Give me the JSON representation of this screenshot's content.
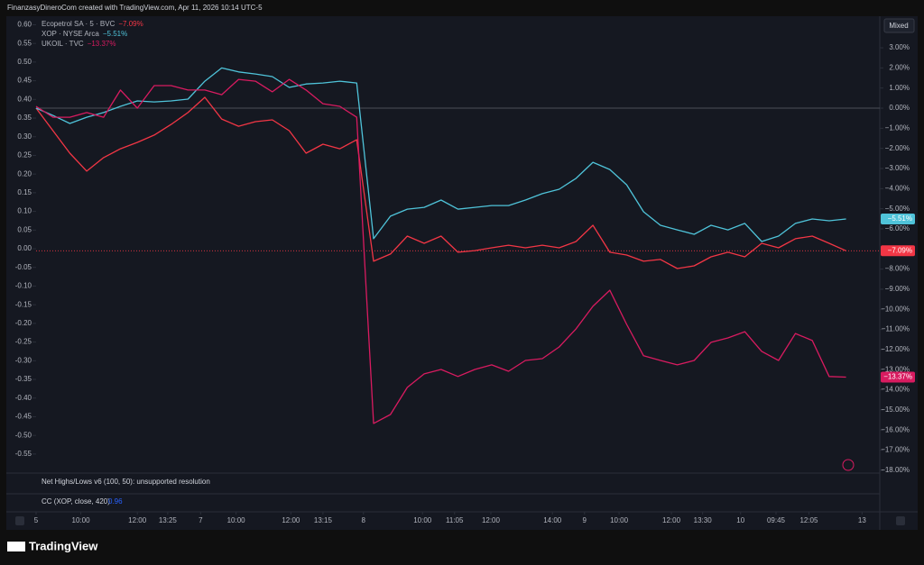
{
  "header": {
    "title": "FinanzasyDineroCom created with TradingView.com, Apr 11, 2026 10:14 UTC-5"
  },
  "chart_data": {
    "type": "line",
    "scale_button": "Mixed",
    "grid": false,
    "x": [
      0,
      2,
      4,
      6,
      8,
      10,
      12,
      14,
      16,
      18,
      20,
      22,
      24,
      26,
      28,
      30,
      32,
      34,
      36,
      38,
      40,
      42,
      44,
      46,
      48,
      50,
      52,
      54,
      56,
      58,
      60,
      62,
      64,
      66,
      68,
      70,
      72,
      74,
      76,
      78,
      80,
      82,
      84,
      86,
      88,
      90,
      92,
      94,
      96
    ],
    "xlim": [
      0,
      100
    ],
    "xticks": [
      {
        "value": 0,
        "label": "5"
      },
      {
        "value": 5.3,
        "label": "10:00"
      },
      {
        "value": 12,
        "label": "12:00"
      },
      {
        "value": 15.6,
        "label": "13:25"
      },
      {
        "value": 19.5,
        "label": "7"
      },
      {
        "value": 23.7,
        "label": "10:00"
      },
      {
        "value": 30.2,
        "label": "12:00"
      },
      {
        "value": 34,
        "label": "13:15"
      },
      {
        "value": 38.8,
        "label": "8"
      },
      {
        "value": 45.8,
        "label": "10:00"
      },
      {
        "value": 49.6,
        "label": "11:05"
      },
      {
        "value": 53.9,
        "label": "12:00"
      },
      {
        "value": 61.2,
        "label": "14:00"
      },
      {
        "value": 65,
        "label": "9"
      },
      {
        "value": 69.1,
        "label": "10:00"
      },
      {
        "value": 75.3,
        "label": "12:00"
      },
      {
        "value": 79,
        "label": "13:30"
      },
      {
        "value": 83.5,
        "label": "10"
      },
      {
        "value": 87.7,
        "label": "09:45"
      },
      {
        "value": 91.6,
        "label": "12:05"
      },
      {
        "value": 97.9,
        "label": "13"
      }
    ],
    "ylim": [
      -0.601,
      0.618
    ],
    "yticks": [
      {
        "value": 0.6,
        "label": "0.60"
      },
      0.55,
      {
        "value": 0.5,
        "label": "0.50"
      },
      0.45,
      {
        "value": 0.4,
        "label": "0.40"
      },
      0.35,
      {
        "value": 0.3,
        "label": "0.30"
      },
      0.25,
      {
        "value": 0.2,
        "label": "0.20"
      },
      0.15,
      {
        "value": 0.1,
        "label": "0.10"
      },
      0.05,
      {
        "value": 0,
        "label": "0.00"
      },
      -0.05,
      {
        "value": -0.1,
        "label": "-0.10"
      },
      -0.15,
      {
        "value": -0.2,
        "label": "-0.20"
      },
      -0.25,
      {
        "value": -0.3,
        "label": "-0.30"
      },
      -0.35,
      {
        "value": -0.4,
        "label": "-0.40"
      },
      -0.45,
      {
        "value": -0.5,
        "label": "-0.50"
      },
      -0.55
    ],
    "y2lim": [
      -18.14,
      4.48
    ],
    "y2ticks": [
      {
        "value": 3,
        "label": "3.00%"
      },
      {
        "value": 2,
        "label": "2.00%"
      },
      {
        "value": 1,
        "label": "1.00%"
      },
      {
        "value": 0,
        "label": "0.00%"
      },
      {
        "value": -1,
        "label": "−1.00%"
      },
      {
        "value": -2,
        "label": "−2.00%"
      },
      {
        "value": -3,
        "label": "−3.00%"
      },
      {
        "value": -4,
        "label": "−4.00%"
      },
      {
        "value": -5,
        "label": "−5.00%"
      },
      {
        "value": -6,
        "label": "−6.00%"
      },
      {
        "value": -8,
        "label": "−8.00%"
      },
      {
        "value": -9,
        "label": "−9.00%"
      },
      {
        "value": -10,
        "label": "−10.00%"
      },
      {
        "value": -11,
        "label": "−11.00%"
      },
      {
        "value": -12,
        "label": "−12.00%"
      },
      {
        "value": -13,
        "label": "−13.00%"
      },
      {
        "value": -14,
        "label": "−14.00%"
      },
      {
        "value": -15,
        "label": "−15.00%"
      },
      {
        "value": -16,
        "label": "−16.00%"
      },
      {
        "value": -17,
        "label": "−17.00%"
      },
      {
        "value": -18,
        "label": "−18.00%"
      }
    ],
    "series": [
      {
        "name": "Ecopetrol SA · 5 · BVC",
        "color": "#f23645",
        "axis": "y2",
        "last_label": "−7.09%",
        "values": [
          0,
          -1.12,
          -2.24,
          -3.13,
          -2.46,
          -2.02,
          -1.7,
          -1.34,
          -0.81,
          -0.22,
          0.54,
          -0.54,
          -0.9,
          -0.67,
          -0.58,
          -1.12,
          -2.24,
          -1.79,
          -2.02,
          -1.57,
          -7.61,
          -7.25,
          -6.36,
          -6.72,
          -6.36,
          -7.16,
          -7.08,
          -6.94,
          -6.81,
          -6.94,
          -6.81,
          -6.94,
          -6.63,
          -5.82,
          -7.16,
          -7.3,
          -7.61,
          -7.52,
          -7.97,
          -7.84,
          -7.39,
          -7.16,
          -7.39,
          -6.72,
          -6.94,
          -6.49,
          -6.36,
          -6.72,
          -7.09
        ]
      },
      {
        "name": "XOP · NYSE Arca",
        "color": "#4fc3d9",
        "axis": "y2",
        "last_label": "−5.51%",
        "values": [
          0,
          -0.36,
          -0.76,
          -0.45,
          -0.22,
          0.09,
          0.36,
          0.31,
          0.36,
          0.45,
          1.34,
          2.0,
          1.8,
          1.7,
          1.57,
          1.03,
          1.2,
          1.25,
          1.34,
          1.25,
          -6.49,
          -5.37,
          -5.02,
          -4.93,
          -4.57,
          -5.02,
          -4.93,
          -4.84,
          -4.84,
          -4.57,
          -4.25,
          -4.03,
          -3.49,
          -2.69,
          -3.05,
          -3.81,
          -5.15,
          -5.82,
          -6.05,
          -6.27,
          -5.82,
          -6.05,
          -5.73,
          -6.63,
          -6.36,
          -5.73,
          -5.51,
          -5.6,
          -5.51
        ]
      },
      {
        "name": "UKOIL · TVC",
        "color": "#d81b60",
        "axis": "y2",
        "last_label": "−13.37%",
        "values": [
          0.09,
          -0.45,
          -0.45,
          -0.22,
          -0.45,
          0.9,
          0,
          1.12,
          1.12,
          0.9,
          0.9,
          0.67,
          1.43,
          1.34,
          0.81,
          1.43,
          0.9,
          0.22,
          0.09,
          -0.45,
          -15.67,
          -15.23,
          -13.88,
          -13.21,
          -12.99,
          -13.34,
          -12.99,
          -12.76,
          -13.08,
          -12.54,
          -12.45,
          -11.87,
          -10.97,
          -9.85,
          -9.05,
          -10.75,
          -12.31,
          -12.54,
          -12.76,
          -12.54,
          -11.64,
          -11.42,
          -11.11,
          -12.09,
          -12.54,
          -11.2,
          -11.55,
          -13.34,
          -13.37
        ]
      }
    ],
    "indicators": [
      {
        "label": "Net Highs/Lows v6 (100, 50): unsupported resolution"
      },
      {
        "label": "CC (XOP, close, 420)",
        "value": 0.96
      }
    ]
  },
  "footer": {
    "brand": "TradingView"
  }
}
